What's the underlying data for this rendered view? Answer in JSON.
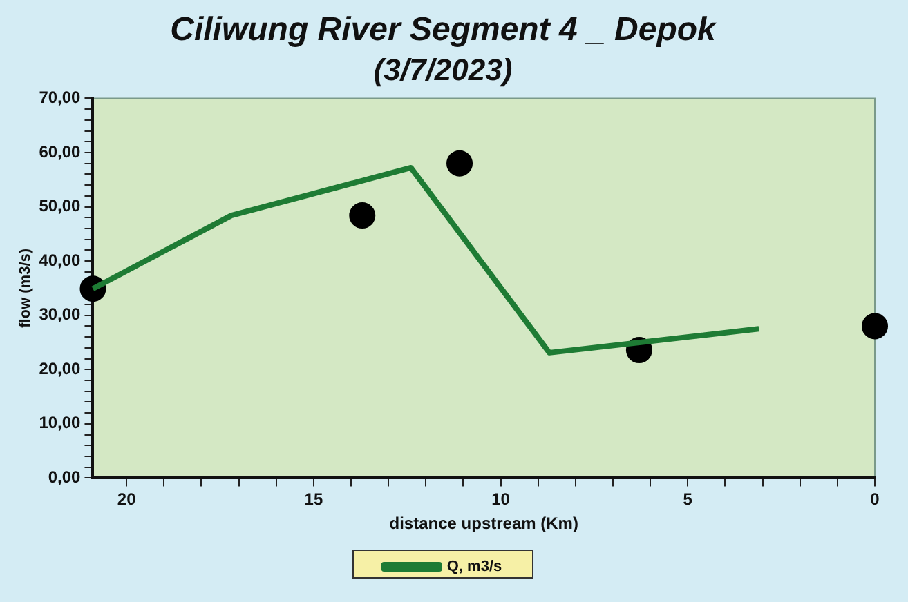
{
  "chart_data": {
    "type": "line",
    "title": "Ciliwung River Segment 4 _ Depok",
    "subtitle": "(3/7/2023)",
    "xlabel": "distance upstream (Km)",
    "ylabel": "flow (m3/s)",
    "xlim": [
      20.9,
      0
    ],
    "xticks": [
      20,
      {
        "value": 19,
        "label": null
      },
      {
        "value": 18,
        "label": null
      },
      {
        "value": 17,
        "label": null
      },
      {
        "value": 16,
        "label": null
      },
      15,
      {
        "value": 14,
        "label": null
      },
      {
        "value": 13,
        "label": null
      },
      {
        "value": 12,
        "label": null
      },
      {
        "value": 11,
        "label": null
      },
      10,
      {
        "value": 9,
        "label": null
      },
      {
        "value": 8,
        "label": null
      },
      {
        "value": 7,
        "label": null
      },
      {
        "value": 6,
        "label": null
      },
      5,
      {
        "value": 4,
        "label": null
      },
      {
        "value": 3,
        "label": null
      },
      {
        "value": 2,
        "label": null
      },
      {
        "value": 1,
        "label": null
      },
      0
    ],
    "ylim": [
      0,
      70
    ],
    "yticks": [
      {
        "value": 0,
        "label": "0,00"
      },
      {
        "value": 2,
        "label": null
      },
      {
        "value": 4,
        "label": null
      },
      {
        "value": 6,
        "label": null
      },
      {
        "value": 8,
        "label": null
      },
      {
        "value": 10,
        "label": "10,00"
      },
      {
        "value": 12,
        "label": null
      },
      {
        "value": 14,
        "label": null
      },
      {
        "value": 16,
        "label": null
      },
      {
        "value": 18,
        "label": null
      },
      {
        "value": 20,
        "label": "20,00"
      },
      {
        "value": 22,
        "label": null
      },
      {
        "value": 24,
        "label": null
      },
      {
        "value": 26,
        "label": null
      },
      {
        "value": 28,
        "label": null
      },
      {
        "value": 30,
        "label": "30,00"
      },
      {
        "value": 32,
        "label": null
      },
      {
        "value": 34,
        "label": null
      },
      {
        "value": 36,
        "label": null
      },
      {
        "value": 38,
        "label": null
      },
      {
        "value": 40,
        "label": "40,00"
      },
      {
        "value": 42,
        "label": null
      },
      {
        "value": 44,
        "label": null
      },
      {
        "value": 46,
        "label": null
      },
      {
        "value": 48,
        "label": null
      },
      {
        "value": 50,
        "label": "50,00"
      },
      {
        "value": 52,
        "label": null
      },
      {
        "value": 54,
        "label": null
      },
      {
        "value": 56,
        "label": null
      },
      {
        "value": 58,
        "label": null
      },
      {
        "value": 60,
        "label": "60,00"
      },
      {
        "value": 62,
        "label": null
      },
      {
        "value": 64,
        "label": null
      },
      {
        "value": 66,
        "label": null
      },
      {
        "value": 68,
        "label": null
      },
      {
        "value": 70,
        "label": "70,00"
      }
    ],
    "grid": false,
    "legend": "bottom",
    "series": [
      {
        "name": "Q, m3/s",
        "color": "#1e7b34",
        "marker": "none",
        "line_style": "solid",
        "x": [
          20.9,
          17.2,
          12.4,
          8.7,
          3.1
        ],
        "values": [
          34.9,
          48.4,
          57.2,
          23.1,
          27.5
        ]
      },
      {
        "type": "scatter",
        "color": "#000000",
        "marker": "circle",
        "x": [
          20.9,
          13.7,
          11.1,
          6.3,
          0
        ],
        "values": [
          34.9,
          48.4,
          58.0,
          23.6,
          28.0
        ]
      }
    ]
  }
}
